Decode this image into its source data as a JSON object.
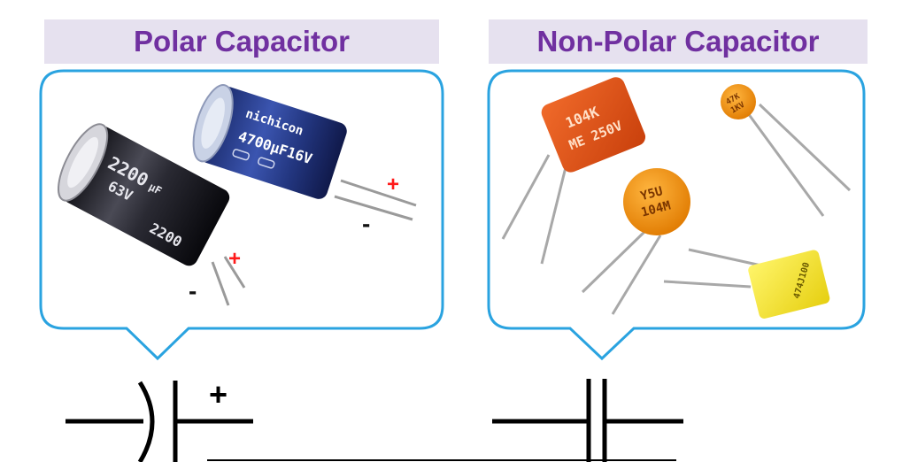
{
  "left_panel": {
    "title": "Polar Capacitor",
    "capacitor_front": {
      "label_main": "2200",
      "label_unit": "µF",
      "label_voltage": "63V",
      "label_bottom": "2200",
      "label_bottom_unit": "µF",
      "label_bottom_voltage": "63V",
      "plus": "+",
      "minus": "-"
    },
    "capacitor_back": {
      "brand": "nichicon",
      "brand_front": "nichicon",
      "label_a": "4700µF16V",
      "label_b": "4700µF16V",
      "plus": "+",
      "minus": "-"
    },
    "symbol": {
      "plus": "+"
    }
  },
  "right_panel": {
    "title": "Non-Polar Capacitor",
    "film_cap": {
      "line1": "104K",
      "line2": "ME 250V"
    },
    "ceramic_large": {
      "line1": "Y5U",
      "line2": "104M"
    },
    "ceramic_small": {
      "line1": "47K",
      "line2": "1KV"
    },
    "box_cap": {
      "line1": "474J100"
    }
  },
  "colors": {
    "title_text": "#7030a0",
    "title_bg": "#e6e1ef",
    "callout_border": "#2aa3e0",
    "sign_red": "#ff1a1a"
  }
}
